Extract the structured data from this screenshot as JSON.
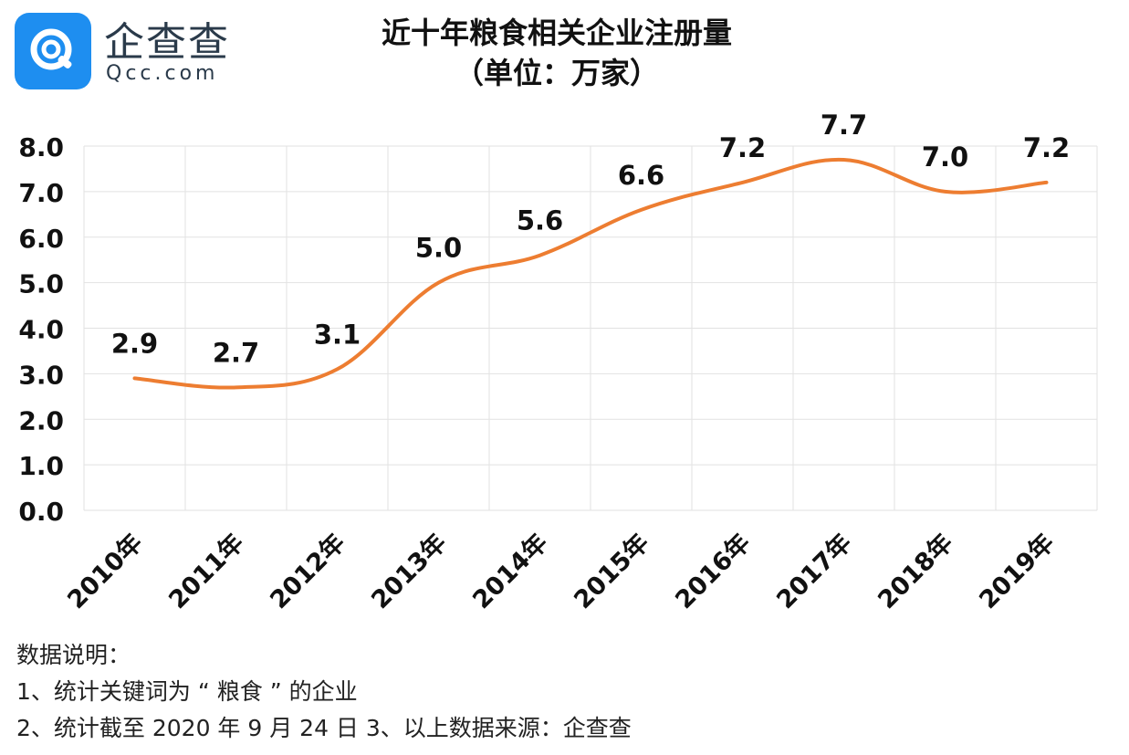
{
  "brand": {
    "name_cn": "企查查",
    "domain": "Qcc.com",
    "accent_color": "#1e8ef0"
  },
  "chart_data": {
    "type": "line",
    "title": "近十年粮食相关企业注册量",
    "subtitle": "（单位：万家）",
    "categories": [
      "2010年",
      "2011年",
      "2012年",
      "2013年",
      "2014年",
      "2015年",
      "2016年",
      "2017年",
      "2018年",
      "2019年"
    ],
    "values": [
      2.9,
      2.7,
      3.1,
      5.0,
      5.6,
      6.6,
      7.2,
      7.7,
      7.0,
      7.2
    ],
    "data_labels": [
      "2.9",
      "2.7",
      "3.1",
      "5.0",
      "5.6",
      "6.6",
      "7.2",
      "7.7",
      "7.0",
      "7.2"
    ],
    "y_ticks": [
      "0.0",
      "1.0",
      "2.0",
      "3.0",
      "4.0",
      "5.0",
      "6.0",
      "7.0",
      "8.0"
    ],
    "ylim": [
      0,
      8
    ],
    "line_color": "#ed7d31",
    "smooth": true,
    "grid": true,
    "legend": "none"
  },
  "notes": {
    "heading": "数据说明：",
    "line1": "1、统计关键词为 “ 粮食 ” 的企业",
    "line2": "2、统计截至 2020 年 9 月 24 日  3、以上数据来源：企查查"
  }
}
